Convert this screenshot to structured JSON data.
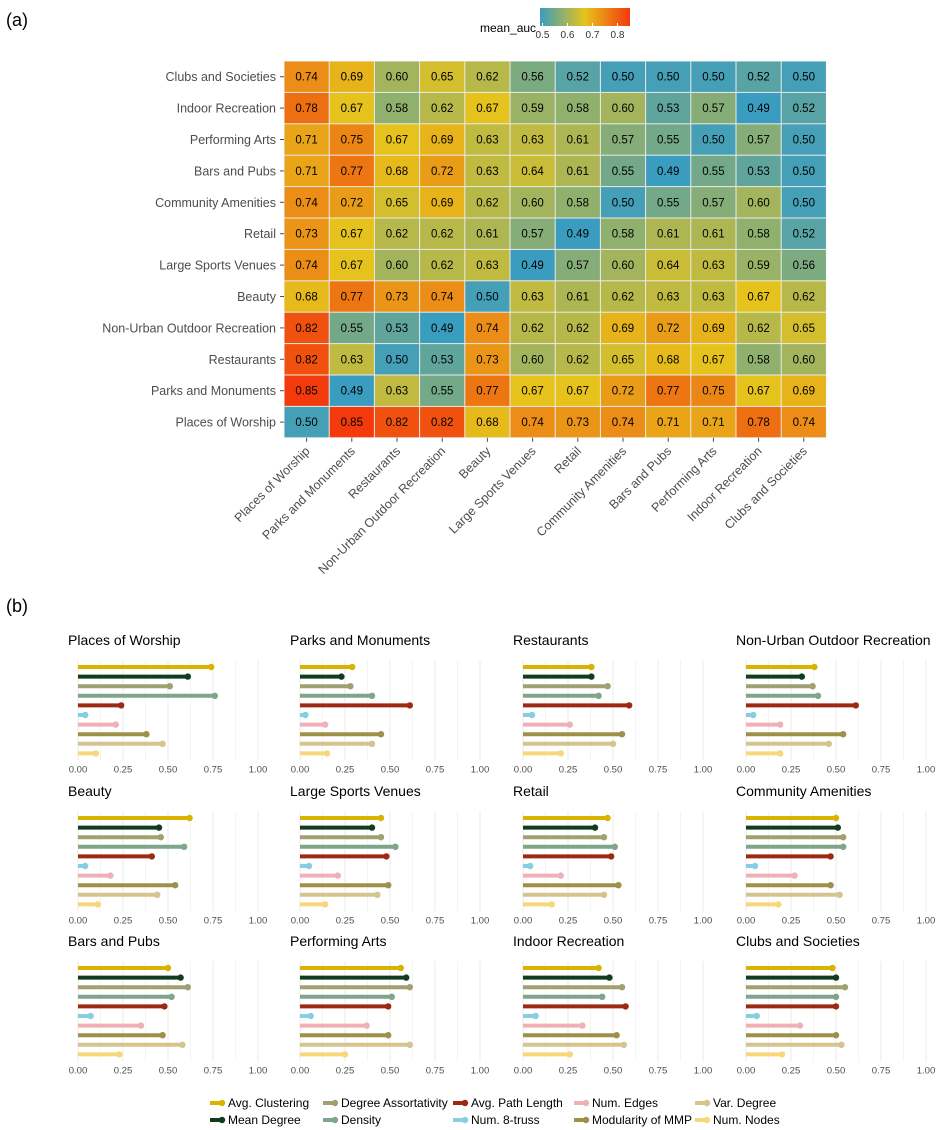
{
  "panel_a_label": "(a)",
  "panel_b_label": "(b)",
  "chart_data": [
    {
      "type": "heatmap",
      "title": "",
      "colorbar": {
        "title": "mean_auc",
        "ticks": [
          0.5,
          0.6,
          0.7,
          0.8
        ],
        "range": [
          0.49,
          0.85
        ],
        "colors": [
          "#3a9dc0",
          "#e6c21c",
          "#f23a0c"
        ]
      },
      "rows": [
        "Clubs and Societies",
        "Indoor Recreation",
        "Performing Arts",
        "Bars and Pubs",
        "Community Amenities",
        "Retail",
        "Large Sports Venues",
        "Beauty",
        "Non-Urban Outdoor Recreation",
        "Restaurants",
        "Parks and Monuments",
        "Places of Worship"
      ],
      "columns": [
        "Places of Worship",
        "Parks and Monuments",
        "Restaurants",
        "Non-Urban Outdoor Recreation",
        "Beauty",
        "Large Sports Venues",
        "Retail",
        "Community Amenities",
        "Bars and Pubs",
        "Performing Arts",
        "Indoor Recreation",
        "Clubs and Societies"
      ],
      "values": [
        [
          0.74,
          0.69,
          0.6,
          0.65,
          0.62,
          0.56,
          0.52,
          0.5,
          0.5,
          0.5,
          0.52,
          0.5
        ],
        [
          0.78,
          0.67,
          0.58,
          0.62,
          0.67,
          0.59,
          0.58,
          0.6,
          0.53,
          0.57,
          0.49,
          0.52
        ],
        [
          0.71,
          0.75,
          0.67,
          0.69,
          0.63,
          0.63,
          0.61,
          0.57,
          0.55,
          0.5,
          0.57,
          0.5
        ],
        [
          0.71,
          0.77,
          0.68,
          0.72,
          0.63,
          0.64,
          0.61,
          0.55,
          0.49,
          0.55,
          0.53,
          0.5
        ],
        [
          0.74,
          0.72,
          0.65,
          0.69,
          0.62,
          0.6,
          0.58,
          0.5,
          0.55,
          0.57,
          0.6,
          0.5
        ],
        [
          0.73,
          0.67,
          0.62,
          0.62,
          0.61,
          0.57,
          0.49,
          0.58,
          0.61,
          0.61,
          0.58,
          0.52
        ],
        [
          0.74,
          0.67,
          0.6,
          0.62,
          0.63,
          0.49,
          0.57,
          0.6,
          0.64,
          0.63,
          0.59,
          0.56
        ],
        [
          0.68,
          0.77,
          0.73,
          0.74,
          0.5,
          0.63,
          0.61,
          0.62,
          0.63,
          0.63,
          0.67,
          0.62
        ],
        [
          0.82,
          0.55,
          0.53,
          0.49,
          0.74,
          0.62,
          0.62,
          0.69,
          0.72,
          0.69,
          0.62,
          0.65
        ],
        [
          0.82,
          0.63,
          0.5,
          0.53,
          0.73,
          0.6,
          0.62,
          0.65,
          0.68,
          0.67,
          0.58,
          0.6
        ],
        [
          0.85,
          0.49,
          0.63,
          0.55,
          0.77,
          0.67,
          0.67,
          0.72,
          0.77,
          0.75,
          0.67,
          0.69
        ],
        [
          0.5,
          0.85,
          0.82,
          0.82,
          0.68,
          0.74,
          0.73,
          0.74,
          0.71,
          0.71,
          0.78,
          0.74
        ]
      ]
    },
    {
      "type": "bar",
      "orientation": "horizontal",
      "style": "lollipop",
      "xlim": [
        0,
        1
      ],
      "xticks": [
        "0.00",
        "0.25",
        "0.50",
        "0.75",
        "1.00"
      ],
      "series": [
        {
          "name": "Avg. Clustering",
          "color": "#d9b300"
        },
        {
          "name": "Mean Degree",
          "color": "#0f3d1e"
        },
        {
          "name": "Degree Assortativity",
          "color": "#a0a070"
        },
        {
          "name": "Density",
          "color": "#7fa68a"
        },
        {
          "name": "Avg. Path Length",
          "color": "#9c2a12"
        },
        {
          "name": "Num. 8-truss",
          "color": "#85cfe0"
        },
        {
          "name": "Num. Edges",
          "color": "#f0b0b8"
        },
        {
          "name": "Modularity of MMP",
          "color": "#9e9048"
        },
        {
          "name": "Var. Degree",
          "color": "#d6c48e"
        },
        {
          "name": "Num. Nodes",
          "color": "#f7d77a"
        }
      ],
      "legend_order": [
        [
          "Avg. Clustering",
          "Mean Degree"
        ],
        [
          "Degree Assortativity",
          "Density"
        ],
        [
          "Avg. Path Length",
          "Num. 8-truss"
        ],
        [
          "Num. Edges",
          "Modularity of MMP"
        ],
        [
          "Var. Degree",
          "Num. Nodes"
        ]
      ],
      "panels": [
        {
          "title": "Places of Worship",
          "values": [
            0.74,
            0.61,
            0.51,
            0.76,
            0.24,
            0.04,
            0.21,
            0.38,
            0.47,
            0.1
          ]
        },
        {
          "title": "Parks and Monuments",
          "values": [
            0.29,
            0.23,
            0.28,
            0.4,
            0.61,
            0.03,
            0.14,
            0.45,
            0.4,
            0.15
          ]
        },
        {
          "title": "Restaurants",
          "values": [
            0.38,
            0.38,
            0.47,
            0.42,
            0.59,
            0.05,
            0.26,
            0.55,
            0.5,
            0.21
          ]
        },
        {
          "title": "Non-Urban Outdoor Recreation",
          "values": [
            0.38,
            0.31,
            0.37,
            0.4,
            0.61,
            0.04,
            0.19,
            0.54,
            0.46,
            0.19
          ]
        },
        {
          "title": "Beauty",
          "values": [
            0.62,
            0.45,
            0.46,
            0.59,
            0.41,
            0.04,
            0.18,
            0.54,
            0.44,
            0.11
          ]
        },
        {
          "title": "Large Sports Venues",
          "values": [
            0.45,
            0.4,
            0.45,
            0.53,
            0.48,
            0.05,
            0.21,
            0.49,
            0.43,
            0.14
          ]
        },
        {
          "title": "Retail",
          "values": [
            0.47,
            0.4,
            0.45,
            0.51,
            0.49,
            0.04,
            0.21,
            0.53,
            0.45,
            0.16
          ]
        },
        {
          "title": "Community Amenities",
          "values": [
            0.5,
            0.51,
            0.54,
            0.54,
            0.47,
            0.05,
            0.27,
            0.47,
            0.52,
            0.18
          ]
        },
        {
          "title": "Bars and Pubs",
          "values": [
            0.5,
            0.57,
            0.61,
            0.52,
            0.48,
            0.07,
            0.35,
            0.47,
            0.58,
            0.23
          ]
        },
        {
          "title": "Performing Arts",
          "values": [
            0.56,
            0.59,
            0.61,
            0.51,
            0.49,
            0.06,
            0.37,
            0.49,
            0.61,
            0.25
          ]
        },
        {
          "title": "Indoor Recreation",
          "values": [
            0.42,
            0.48,
            0.55,
            0.44,
            0.57,
            0.07,
            0.33,
            0.52,
            0.56,
            0.26
          ]
        },
        {
          "title": "Clubs and Societies",
          "values": [
            0.48,
            0.5,
            0.55,
            0.5,
            0.5,
            0.06,
            0.3,
            0.5,
            0.53,
            0.2
          ]
        }
      ]
    }
  ]
}
